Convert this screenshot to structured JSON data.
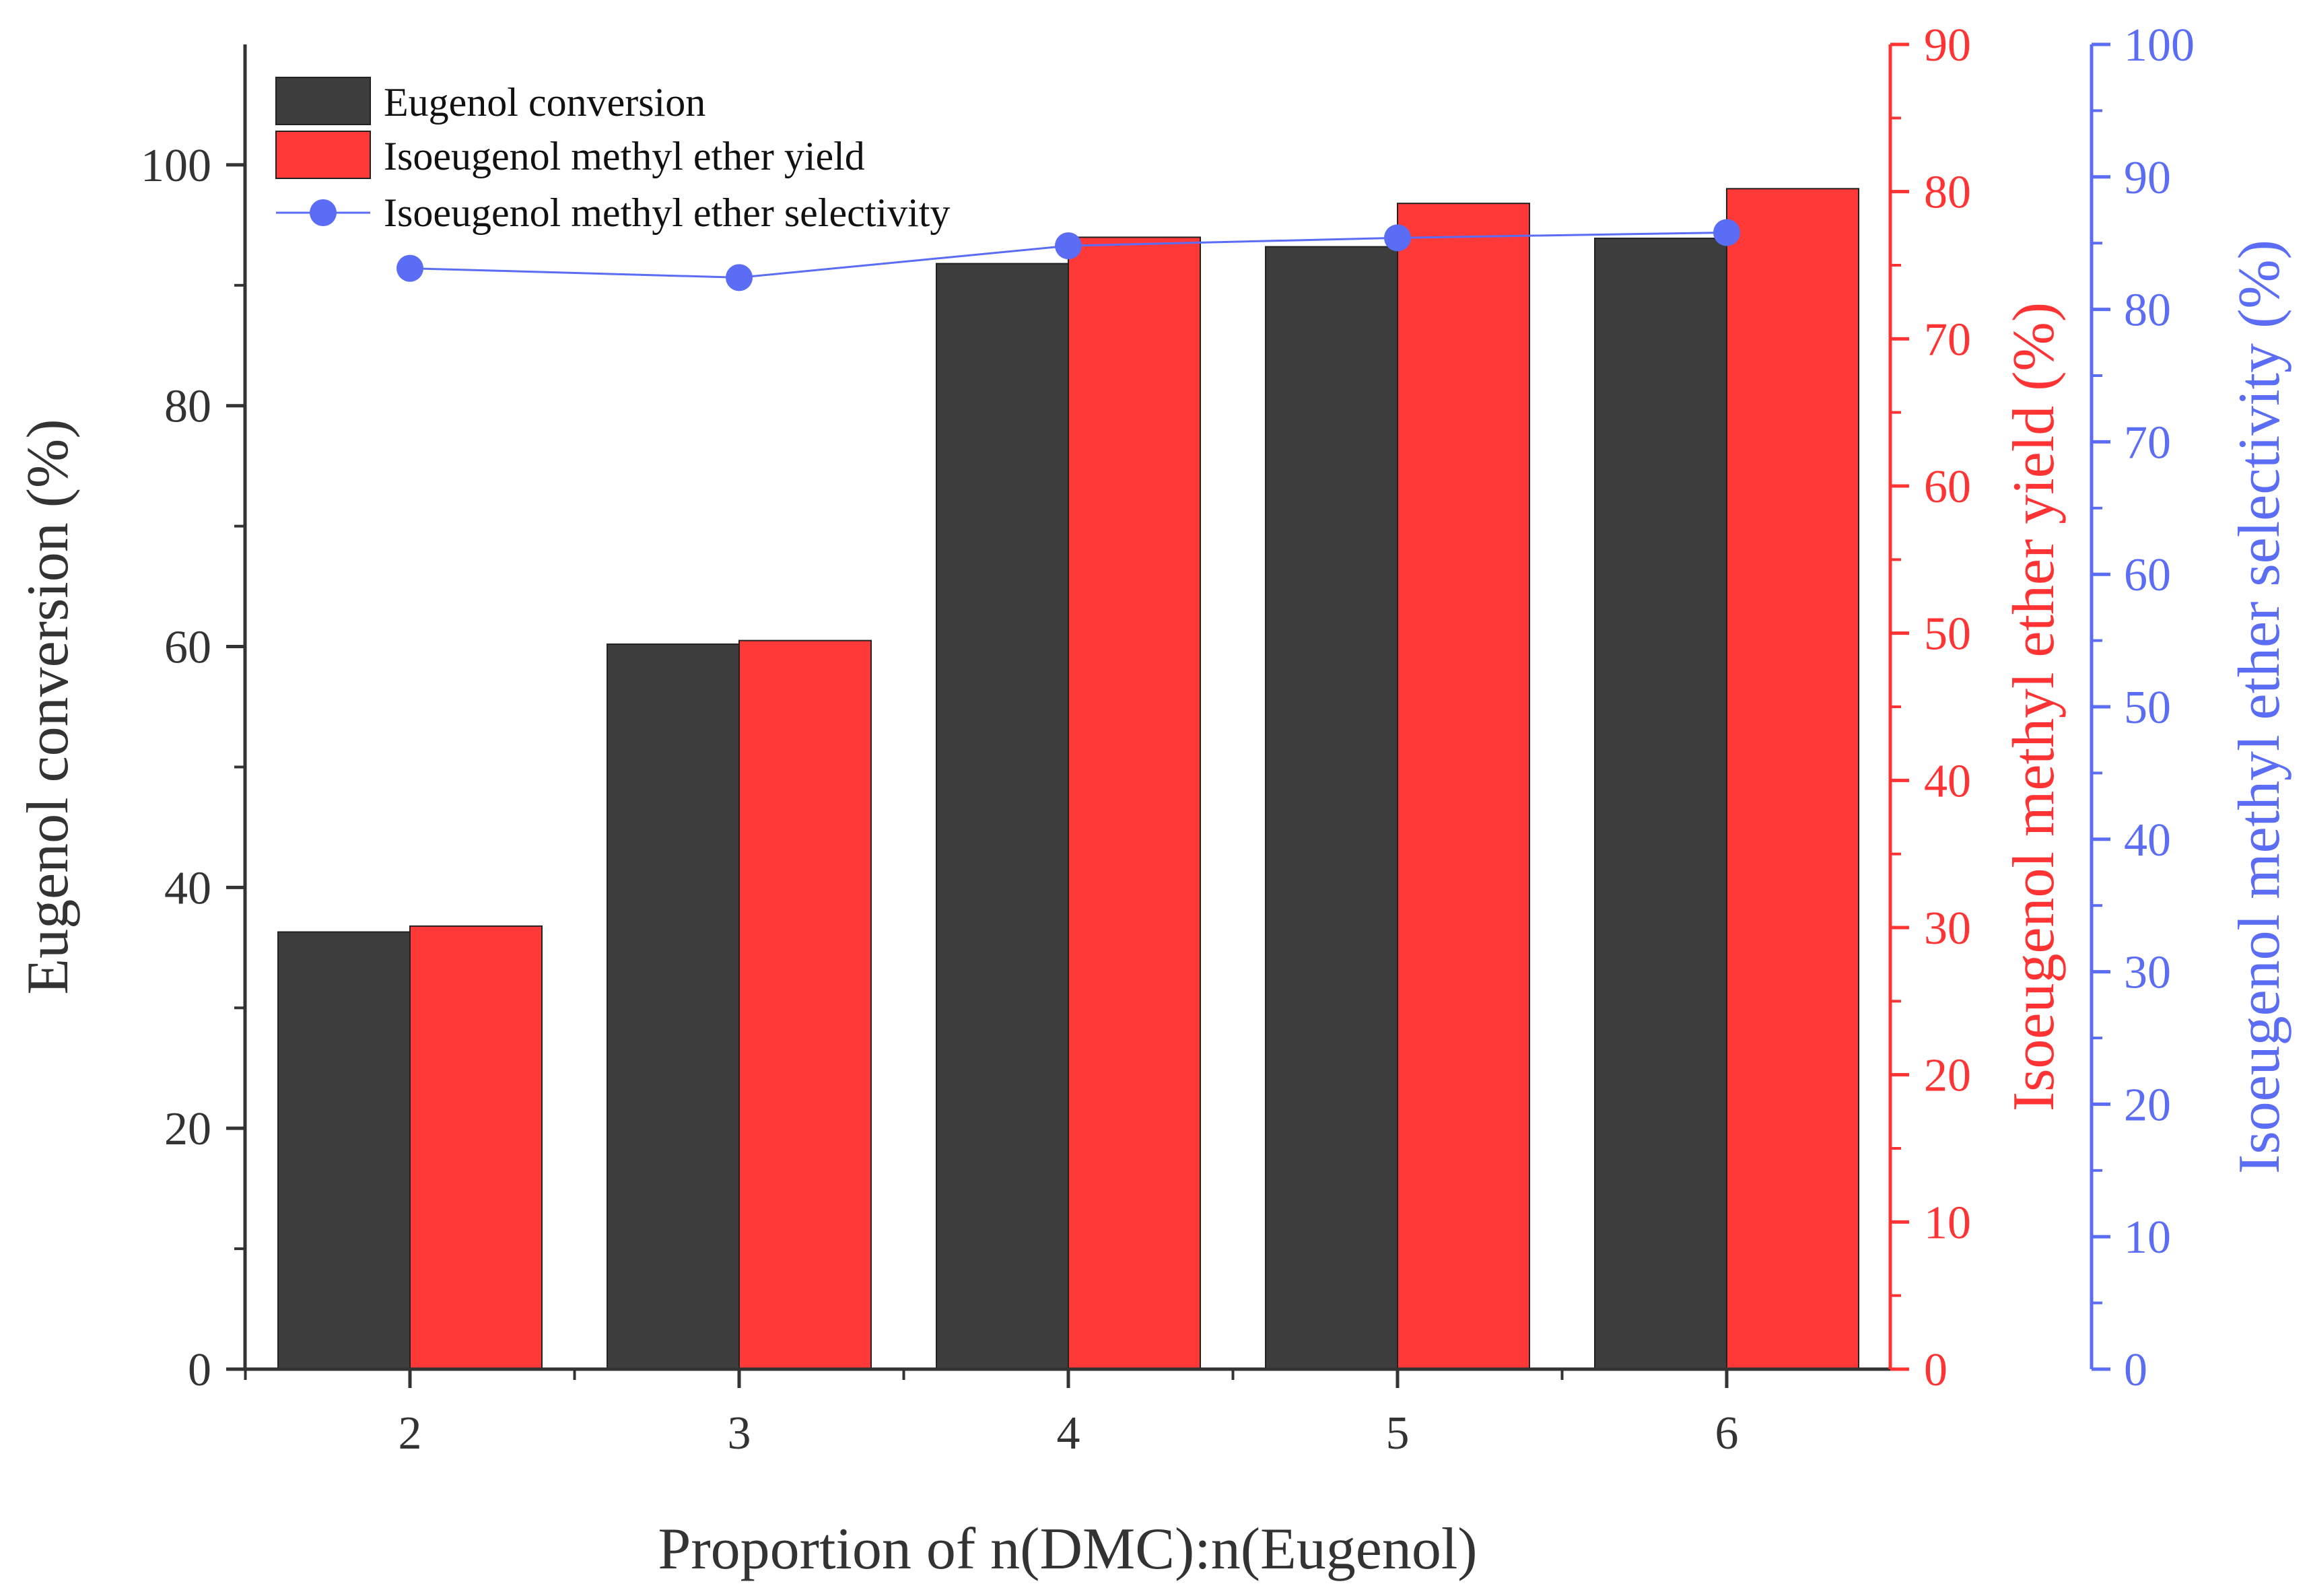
{
  "chart_data": {
    "type": "bar+line",
    "categories": [
      "2",
      "3",
      "4",
      "5",
      "6"
    ],
    "xlabel": "Proportion of n(DMC):n(Eugenol)",
    "axes": {
      "left": {
        "label": "Eugenol conversion (%)",
        "ylim": [
          0,
          110
        ],
        "ticks": [
          0,
          20,
          40,
          60,
          80,
          100
        ],
        "tick_labels": [
          "0",
          "20",
          "40",
          "60",
          "80",
          "100"
        ],
        "color": "#333333"
      },
      "right1": {
        "label": "Isoeugenol methyl ether yield (%)",
        "ylim": [
          0,
          90
        ],
        "ticks": [
          0,
          10,
          20,
          30,
          40,
          50,
          60,
          70,
          80,
          90
        ],
        "tick_labels": [
          "0",
          "10",
          "20",
          "30",
          "40",
          "50",
          "60",
          "70",
          "80",
          "90"
        ],
        "color": "#ff3333"
      },
      "right2": {
        "label": "Isoeugenol methyl ether selectivity (%)",
        "ylim": [
          0,
          100
        ],
        "ticks": [
          0,
          10,
          20,
          30,
          40,
          50,
          60,
          70,
          80,
          90,
          100
        ],
        "tick_labels": [
          "0",
          "10",
          "20",
          "30",
          "40",
          "50",
          "60",
          "70",
          "80",
          "90",
          "100"
        ],
        "color": "#5b6cf5"
      }
    },
    "series": [
      {
        "name": "Eugenol conversion",
        "kind": "bar",
        "axis": "left",
        "color": "#3d3d3d",
        "values": [
          36.3,
          60.2,
          91.8,
          93.2,
          93.9
        ]
      },
      {
        "name": "Isoeugenol methyl ether yield",
        "kind": "bar",
        "axis": "right1",
        "color": "#ff3838",
        "values": [
          30.1,
          49.5,
          76.9,
          79.2,
          80.2
        ]
      },
      {
        "name": "Isoeugenol methyl ether selectivity",
        "kind": "line",
        "axis": "right2",
        "color": "#5b6cf5",
        "values": [
          83.1,
          82.4,
          84.8,
          85.4,
          85.8
        ]
      }
    ],
    "legend": {
      "position": "top-left",
      "items": [
        "Eugenol conversion",
        "Isoeugenol methyl ether yield",
        "Isoeugenol methyl ether selectivity"
      ]
    }
  }
}
